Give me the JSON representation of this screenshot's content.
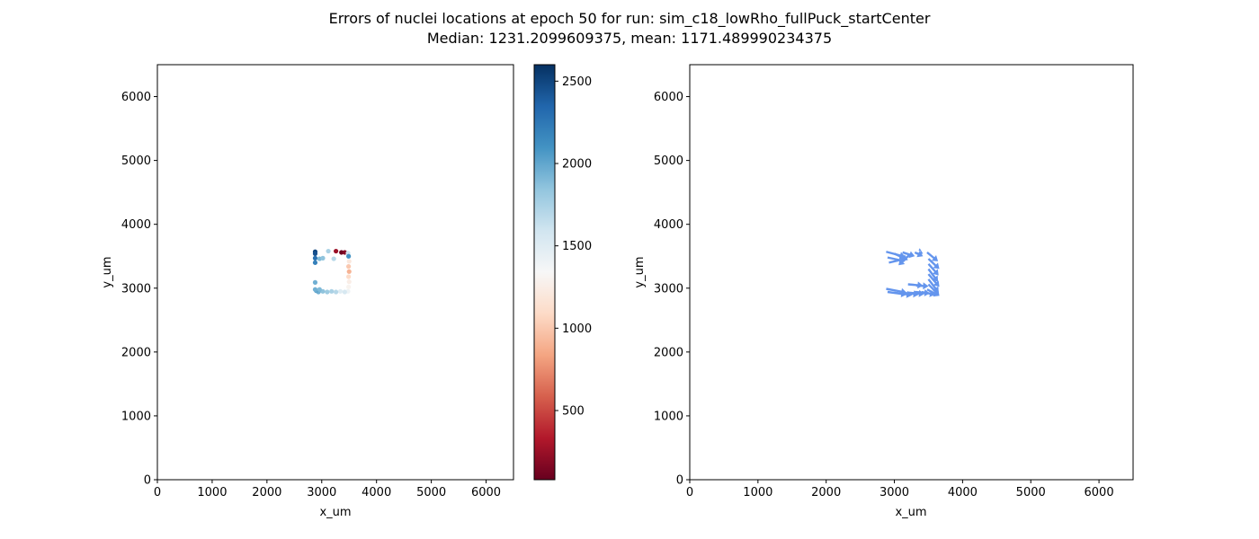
{
  "figure": {
    "title_line1": "Errors of nuclei locations at epoch 50 for run: sim_c18_lowRho_fullPuck_startCenter",
    "title_line2": "Median: 1231.2099609375, mean: 1171.489990234375"
  },
  "chart_data": [
    {
      "type": "scatter",
      "name": "error-scatter",
      "xlabel": "x_um",
      "ylabel": "y_um",
      "xlim": [
        0,
        6500
      ],
      "ylim": [
        0,
        6500
      ],
      "xticks": [
        0,
        1000,
        2000,
        3000,
        4000,
        5000,
        6000
      ],
      "yticks": [
        0,
        1000,
        2000,
        3000,
        4000,
        5000,
        6000
      ],
      "grid": false,
      "colorbar": {
        "colormap": "RdBu",
        "range": [
          80,
          2600
        ],
        "ticks": [
          500,
          1000,
          1500,
          2000,
          2500
        ]
      },
      "points": [
        {
          "x": 2880,
          "y": 3570,
          "value": 2500
        },
        {
          "x": 2880,
          "y": 3540,
          "value": 2450
        },
        {
          "x": 2880,
          "y": 3470,
          "value": 2300
        },
        {
          "x": 2880,
          "y": 3400,
          "value": 2200
        },
        {
          "x": 2960,
          "y": 3460,
          "value": 1900
        },
        {
          "x": 3020,
          "y": 3470,
          "value": 1850
        },
        {
          "x": 3120,
          "y": 3580,
          "value": 1750
        },
        {
          "x": 3220,
          "y": 3460,
          "value": 1700
        },
        {
          "x": 3260,
          "y": 3580,
          "value": 250
        },
        {
          "x": 3360,
          "y": 3560,
          "value": 100
        },
        {
          "x": 3420,
          "y": 3560,
          "value": 180
        },
        {
          "x": 3480,
          "y": 3550,
          "value": 1600
        },
        {
          "x": 3490,
          "y": 3500,
          "value": 2100
        },
        {
          "x": 3500,
          "y": 3420,
          "value": 1200
        },
        {
          "x": 3490,
          "y": 3340,
          "value": 1000
        },
        {
          "x": 3500,
          "y": 3260,
          "value": 900
        },
        {
          "x": 3490,
          "y": 3180,
          "value": 1100
        },
        {
          "x": 3500,
          "y": 3100,
          "value": 1250
        },
        {
          "x": 3490,
          "y": 3020,
          "value": 1300
        },
        {
          "x": 3480,
          "y": 2950,
          "value": 1400
        },
        {
          "x": 3420,
          "y": 2940,
          "value": 1550
        },
        {
          "x": 3340,
          "y": 2950,
          "value": 1500
        },
        {
          "x": 3260,
          "y": 2940,
          "value": 1700
        },
        {
          "x": 3180,
          "y": 2950,
          "value": 1750
        },
        {
          "x": 3100,
          "y": 2940,
          "value": 1800
        },
        {
          "x": 3020,
          "y": 2950,
          "value": 1850
        },
        {
          "x": 2940,
          "y": 2940,
          "value": 1950
        },
        {
          "x": 2900,
          "y": 2960,
          "value": 2000
        },
        {
          "x": 2880,
          "y": 2980,
          "value": 1950
        },
        {
          "x": 2880,
          "y": 3090,
          "value": 1950
        },
        {
          "x": 2960,
          "y": 2980,
          "value": 1900
        }
      ]
    },
    {
      "type": "quiver",
      "name": "error-vectors",
      "xlabel": "x_um",
      "ylabel": "y_um",
      "xlim": [
        0,
        6500
      ],
      "ylim": [
        0,
        6500
      ],
      "xticks": [
        0,
        1000,
        2000,
        3000,
        4000,
        5000,
        6000
      ],
      "yticks": [
        0,
        1000,
        2000,
        3000,
        4000,
        5000,
        6000
      ],
      "grid": false,
      "color": "#6495ed",
      "vectors": [
        {
          "x": 2880,
          "y": 3570,
          "u": 280,
          "v": -80
        },
        {
          "x": 2900,
          "y": 3480,
          "u": 260,
          "v": -60
        },
        {
          "x": 2920,
          "y": 3400,
          "u": 240,
          "v": 60
        },
        {
          "x": 3000,
          "y": 3540,
          "u": 200,
          "v": -100
        },
        {
          "x": 3120,
          "y": 3560,
          "u": 180,
          "v": -60
        },
        {
          "x": 3220,
          "y": 3520,
          "u": -160,
          "v": -160
        },
        {
          "x": 3300,
          "y": 3560,
          "u": 120,
          "v": -60
        },
        {
          "x": 3380,
          "y": 3560,
          "u": 40,
          "v": -20
        },
        {
          "x": 3480,
          "y": 3560,
          "u": 160,
          "v": -140
        },
        {
          "x": 3500,
          "y": 3460,
          "u": 160,
          "v": -160
        },
        {
          "x": 3500,
          "y": 3380,
          "u": 150,
          "v": -180
        },
        {
          "x": 3500,
          "y": 3300,
          "u": 140,
          "v": -200
        },
        {
          "x": 3500,
          "y": 3220,
          "u": 160,
          "v": -200
        },
        {
          "x": 3500,
          "y": 3140,
          "u": 150,
          "v": -210
        },
        {
          "x": 3500,
          "y": 3060,
          "u": 160,
          "v": -180
        },
        {
          "x": 3480,
          "y": 2980,
          "u": 180,
          "v": -100
        },
        {
          "x": 3400,
          "y": 2940,
          "u": 200,
          "v": -40
        },
        {
          "x": 3300,
          "y": 2940,
          "u": 220,
          "v": -20
        },
        {
          "x": 3200,
          "y": 2930,
          "u": 240,
          "v": -20
        },
        {
          "x": 3100,
          "y": 2930,
          "u": 260,
          "v": -30
        },
        {
          "x": 3000,
          "y": 2930,
          "u": 260,
          "v": -40
        },
        {
          "x": 2900,
          "y": 2940,
          "u": 280,
          "v": -40
        },
        {
          "x": 2880,
          "y": 2990,
          "u": 300,
          "v": -60
        },
        {
          "x": 3200,
          "y": 3060,
          "u": 220,
          "v": -20
        },
        {
          "x": 3320,
          "y": 3040,
          "u": 180,
          "v": -10
        }
      ]
    }
  ]
}
